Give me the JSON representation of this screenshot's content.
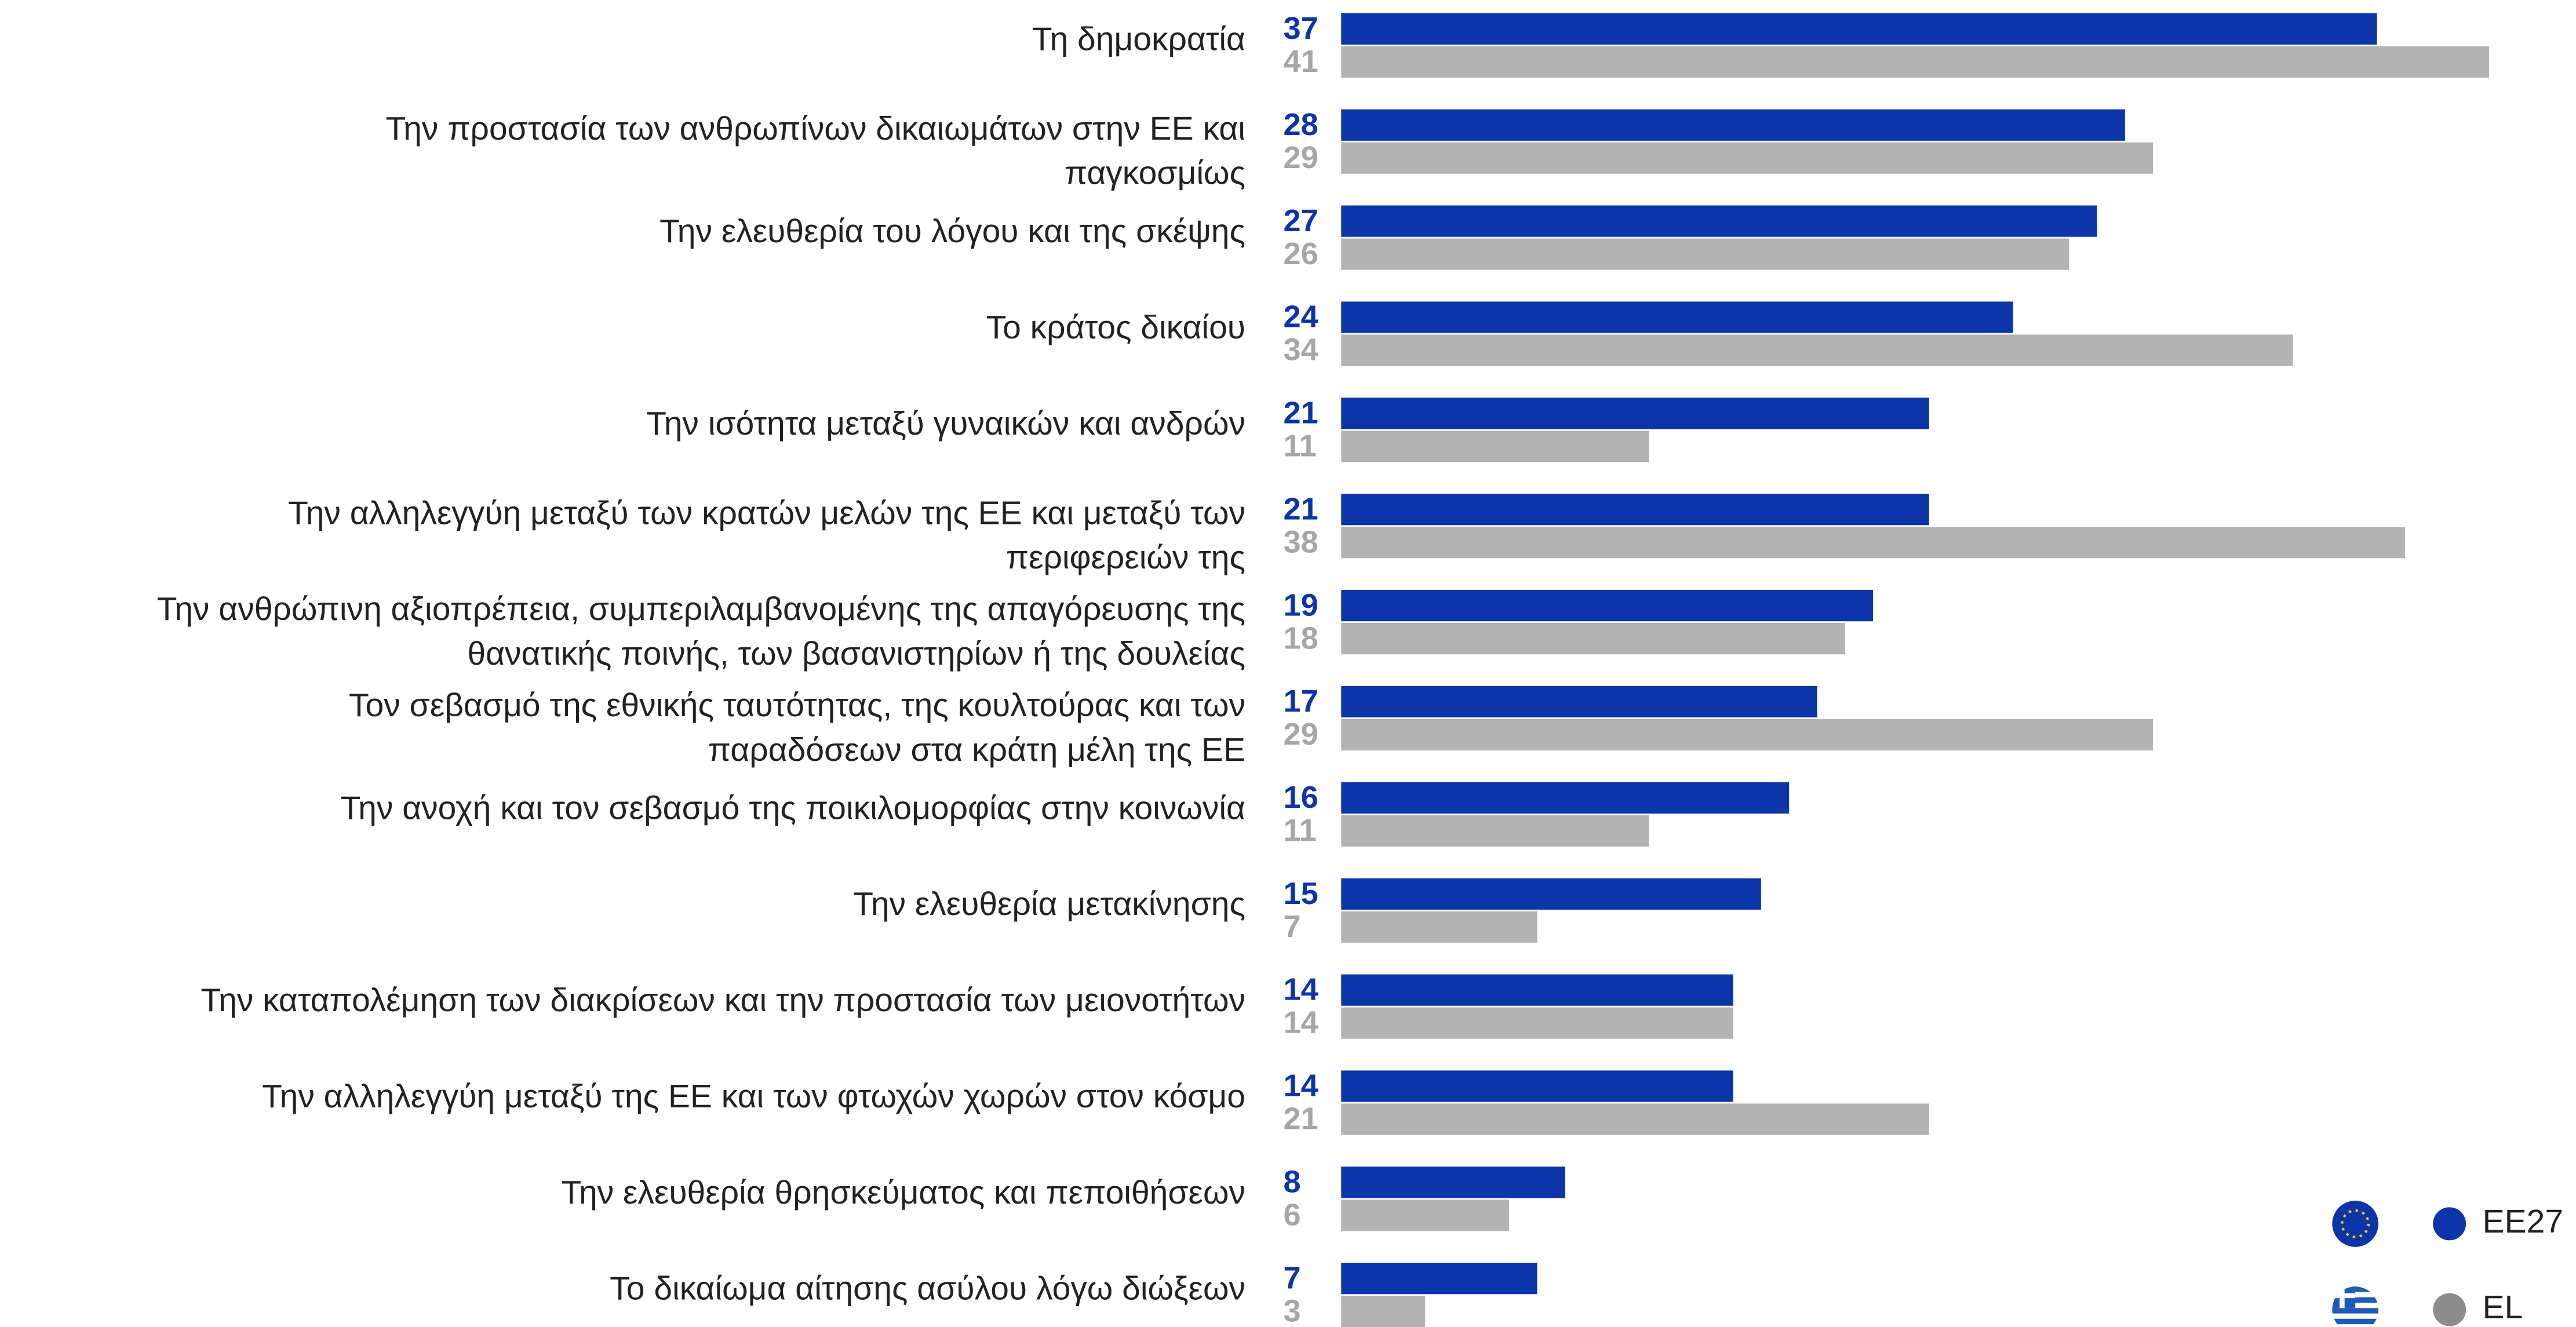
{
  "chart_data": {
    "type": "bar",
    "orientation": "horizontal",
    "categories": [
      [
        "Τη δημοκρατία"
      ],
      [
        "Την προστασία των ανθρωπίνων δικαιωμάτων στην ΕΕ και",
        "παγκοσμίως"
      ],
      [
        "Την ελευθερία του λόγου και της σκέψης"
      ],
      [
        "Το κράτος δικαίου"
      ],
      [
        "Την ισότητα μεταξύ γυναικών και ανδρών"
      ],
      [
        "Την αλληλεγγύη μεταξύ των κρατών μελών της ΕΕ και μεταξύ των",
        "περιφερειών της"
      ],
      [
        "Την ανθρώπινη αξιοπρέπεια, συμπεριλαμβανομένης της απαγόρευσης της",
        "θανατικής ποινής, των βασανιστηρίων ή της δουλείας"
      ],
      [
        "Τον σεβασμό της εθνικής ταυτότητας, της κουλτούρας και των",
        "παραδόσεων στα κράτη μέλη της ΕΕ"
      ],
      [
        "Την ανοχή και τον σεβασμό της ποικιλομορφίας στην κοινωνία"
      ],
      [
        "Την ελευθερία μετακίνησης"
      ],
      [
        "Την καταπολέμηση των διακρίσεων και την προστασία των μειονοτήτων"
      ],
      [
        "Την αλληλεγγύη μεταξύ της ΕΕ και των φτωχών χωρών στον κόσμο"
      ],
      [
        "Την ελευθερία θρησκεύματος και πεποιθήσεων"
      ],
      [
        "Το δικαίωμα αίτησης ασύλου λόγω διώξεων"
      ]
    ],
    "series": [
      {
        "name": "EE27",
        "color": "#0b35a8",
        "label_color": "#0b35a8",
        "values": [
          37,
          28,
          27,
          24,
          21,
          21,
          19,
          17,
          16,
          15,
          14,
          14,
          8,
          7
        ]
      },
      {
        "name": "EL",
        "color": "#b3b3b3",
        "label_color": "#a6a6a6",
        "values": [
          41,
          29,
          26,
          34,
          11,
          38,
          18,
          29,
          11,
          7,
          14,
          21,
          6,
          3
        ]
      }
    ],
    "legend": "bottom-right"
  }
}
